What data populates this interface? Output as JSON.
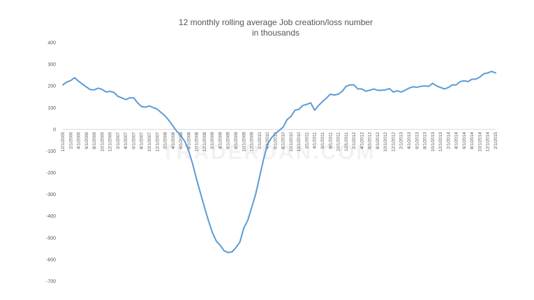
{
  "watermark": "TRADERDAN.COM",
  "colors": {
    "series": "#5b9bd5",
    "zero_line": "#d9d9d9",
    "text": "#555555"
  },
  "chart_data": {
    "type": "line",
    "title": [
      "12 monthly rolling average Job creation/loss number",
      "in thousands"
    ],
    "xlabel": "",
    "ylabel": "",
    "ylim": [
      -700,
      400
    ],
    "yticks": [
      400,
      300,
      200,
      100,
      0,
      -100,
      -200,
      -300,
      -400,
      -500,
      -600,
      -700
    ],
    "grid": false,
    "legend": "none",
    "x_tick_labels": [
      "12/1/2005",
      "2/1/2006",
      "4/1/2006",
      "6/1/2006",
      "8/1/2006",
      "10/1/2006",
      "12/1/2006",
      "2/1/2007",
      "4/1/2007",
      "6/1/2007",
      "8/1/2007",
      "10/1/2007",
      "12/1/2007",
      "2/1/2008",
      "4/1/2008",
      "6/1/2008",
      "8/1/2008",
      "10/1/2008",
      "12/1/2008",
      "2/1/2009",
      "4/1/2009",
      "6/1/2009",
      "8/1/2009",
      "10/1/2009",
      "12/1/2009",
      "2/1/2010",
      "4/1/2010",
      "6/1/2010",
      "8/1/2010",
      "10/1/2010",
      "12/1/2010",
      "2/1/2011",
      "4/1/2011",
      "6/1/2011",
      "8/1/2011",
      "10/1/2011",
      "12/1/2011",
      "2/1/2012",
      "4/1/2012",
      "6/1/2012",
      "8/1/2012",
      "10/1/2012",
      "12/1/2012",
      "2/1/2013",
      "4/1/2013",
      "6/1/2013",
      "8/1/2013",
      "10/1/2013",
      "12/1/2013",
      "2/1/2014",
      "4/1/2014",
      "6/1/2014",
      "8/1/2014",
      "10/1/2014",
      "12/1/2014",
      "2/1/2015"
    ],
    "series": [
      {
        "values": [
          205,
          218,
          225,
          238,
          222,
          208,
          195,
          183,
          182,
          190,
          184,
          172,
          175,
          170,
          152,
          145,
          137,
          145,
          145,
          122,
          105,
          102,
          108,
          100,
          93,
          77,
          62,
          40,
          15,
          -10,
          -30,
          -55,
          -100,
          -160,
          -230,
          -295,
          -360,
          -420,
          -475,
          -515,
          -535,
          -560,
          -568,
          -565,
          -545,
          -520,
          -455,
          -420,
          -360,
          -300,
          -220,
          -140,
          -70,
          -40,
          -20,
          -5,
          10,
          45,
          60,
          88,
          92,
          110,
          115,
          122,
          88,
          110,
          128,
          144,
          162,
          158,
          162,
          175,
          198,
          205,
          205,
          186,
          186,
          176,
          180,
          186,
          180,
          180,
          182,
          188,
          172,
          178,
          172,
          180,
          190,
          196,
          194,
          198,
          200,
          198,
          212,
          200,
          193,
          186,
          193,
          205,
          205,
          220,
          224,
          220,
          231,
          231,
          241,
          256,
          260,
          267,
          260
        ]
      }
    ]
  }
}
